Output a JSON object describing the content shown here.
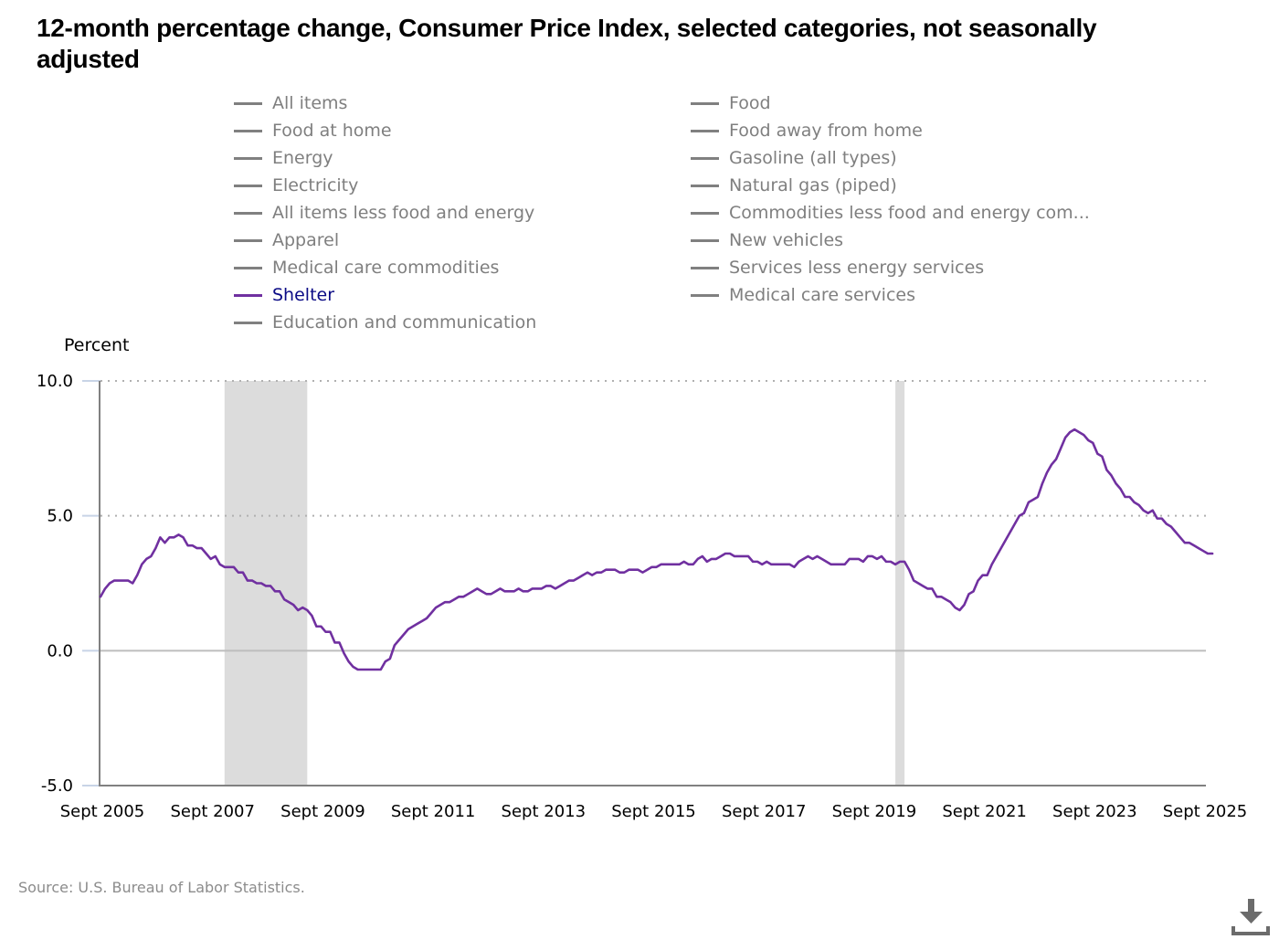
{
  "title": "12-month percentage change, Consumer Price Index, selected categories, not seasonally adjusted",
  "legend": {
    "items": [
      {
        "label": "All items",
        "active": false
      },
      {
        "label": "Food",
        "active": false
      },
      {
        "label": "Food at home",
        "active": false
      },
      {
        "label": "Food away from home",
        "active": false
      },
      {
        "label": "Energy",
        "active": false
      },
      {
        "label": "Gasoline (all types)",
        "active": false
      },
      {
        "label": "Electricity",
        "active": false
      },
      {
        "label": "Natural gas (piped)",
        "active": false
      },
      {
        "label": "All items less food and energy",
        "active": false
      },
      {
        "label": "Commodities less food and energy com...",
        "active": false
      },
      {
        "label": "Apparel",
        "active": false
      },
      {
        "label": "New vehicles",
        "active": false
      },
      {
        "label": "Medical care commodities",
        "active": false
      },
      {
        "label": "Services less energy services",
        "active": false
      },
      {
        "label": "Shelter",
        "active": true
      },
      {
        "label": "Medical care services",
        "active": false
      },
      {
        "label": "Education and communication",
        "active": false
      }
    ]
  },
  "source": "Source: U.S. Bureau of Labor Statistics.",
  "download_icon": "download-icon",
  "colors": {
    "shelter": "#7030a0",
    "inactive_legend": "#808080",
    "active_legend_text": "#0a0a85",
    "recession_shade": "#dcdcdc"
  },
  "chart_data": {
    "type": "line",
    "title": "12-month percentage change, Consumer Price Index, selected categories, not seasonally adjusted",
    "xlabel": "",
    "ylabel": "Percent",
    "ylim": [
      -5.0,
      10.0
    ],
    "yticks": [
      "10.0",
      "5.0",
      "0.0",
      "-5.0"
    ],
    "ytick_values": [
      10,
      5,
      0,
      -5
    ],
    "xticks": [
      "Sept 2005",
      "Sept 2007",
      "Sept 2009",
      "Sept 2011",
      "Sept 2013",
      "Sept 2015",
      "Sept 2017",
      "Sept 2019",
      "Sept 2021",
      "Sept 2023",
      "Sept 2025"
    ],
    "x_start": "Sept 2005",
    "x_end": "Sept 2025",
    "x_frequency": "monthly",
    "grid": "dotted horizontal at 5.0 and 10.0; solid zero line",
    "legend_position": "top",
    "recessions": [
      {
        "start": "Dec 2007",
        "end": "June 2009"
      },
      {
        "start": "Feb 2020",
        "end": "Apr 2020"
      }
    ],
    "series": [
      {
        "name": "Shelter",
        "color": "#7030a0",
        "values": [
          2.0,
          2.3,
          2.5,
          2.6,
          2.6,
          2.6,
          2.6,
          2.5,
          2.8,
          3.2,
          3.4,
          3.5,
          3.8,
          4.2,
          4.0,
          4.2,
          4.2,
          4.3,
          4.2,
          3.9,
          3.9,
          3.8,
          3.8,
          3.6,
          3.4,
          3.5,
          3.2,
          3.1,
          3.1,
          3.1,
          2.9,
          2.9,
          2.6,
          2.6,
          2.5,
          2.5,
          2.4,
          2.4,
          2.2,
          2.2,
          1.9,
          1.8,
          1.7,
          1.5,
          1.6,
          1.5,
          1.3,
          0.9,
          0.9,
          0.7,
          0.7,
          0.3,
          0.3,
          -0.1,
          -0.4,
          -0.6,
          -0.7,
          -0.7,
          -0.7,
          -0.7,
          -0.7,
          -0.7,
          -0.4,
          -0.3,
          0.2,
          0.4,
          0.6,
          0.8,
          0.9,
          1.0,
          1.1,
          1.2,
          1.4,
          1.6,
          1.7,
          1.8,
          1.8,
          1.9,
          2.0,
          2.0,
          2.1,
          2.2,
          2.3,
          2.2,
          2.1,
          2.1,
          2.2,
          2.3,
          2.2,
          2.2,
          2.2,
          2.3,
          2.2,
          2.2,
          2.3,
          2.3,
          2.3,
          2.4,
          2.4,
          2.3,
          2.4,
          2.5,
          2.6,
          2.6,
          2.7,
          2.8,
          2.9,
          2.8,
          2.9,
          2.9,
          3.0,
          3.0,
          3.0,
          2.9,
          2.9,
          3.0,
          3.0,
          3.0,
          2.9,
          3.0,
          3.1,
          3.1,
          3.2,
          3.2,
          3.2,
          3.2,
          3.2,
          3.3,
          3.2,
          3.2,
          3.4,
          3.5,
          3.3,
          3.4,
          3.4,
          3.5,
          3.6,
          3.6,
          3.5,
          3.5,
          3.5,
          3.5,
          3.3,
          3.3,
          3.2,
          3.3,
          3.2,
          3.2,
          3.2,
          3.2,
          3.2,
          3.1,
          3.3,
          3.4,
          3.5,
          3.4,
          3.5,
          3.4,
          3.3,
          3.2,
          3.2,
          3.2,
          3.2,
          3.4,
          3.4,
          3.4,
          3.3,
          3.5,
          3.5,
          3.4,
          3.5,
          3.3,
          3.3,
          3.2,
          3.3,
          3.3,
          3.0,
          2.6,
          2.5,
          2.4,
          2.3,
          2.3,
          2.0,
          2.0,
          1.9,
          1.8,
          1.6,
          1.5,
          1.7,
          2.1,
          2.2,
          2.6,
          2.8,
          2.8,
          3.2,
          3.5,
          3.8,
          4.1,
          4.4,
          4.7,
          5.0,
          5.1,
          5.5,
          5.6,
          5.7,
          6.2,
          6.6,
          6.9,
          7.1,
          7.5,
          7.9,
          8.1,
          8.2,
          8.1,
          8.0,
          7.8,
          7.7,
          7.3,
          7.2,
          6.7,
          6.5,
          6.2,
          6.0,
          5.7,
          5.7,
          5.5,
          5.4,
          5.2,
          5.1,
          5.2,
          4.9,
          4.9,
          4.7,
          4.6,
          4.4,
          4.2,
          4.0,
          4.0,
          3.9,
          3.8,
          3.7,
          3.6,
          3.6
        ]
      }
    ]
  }
}
